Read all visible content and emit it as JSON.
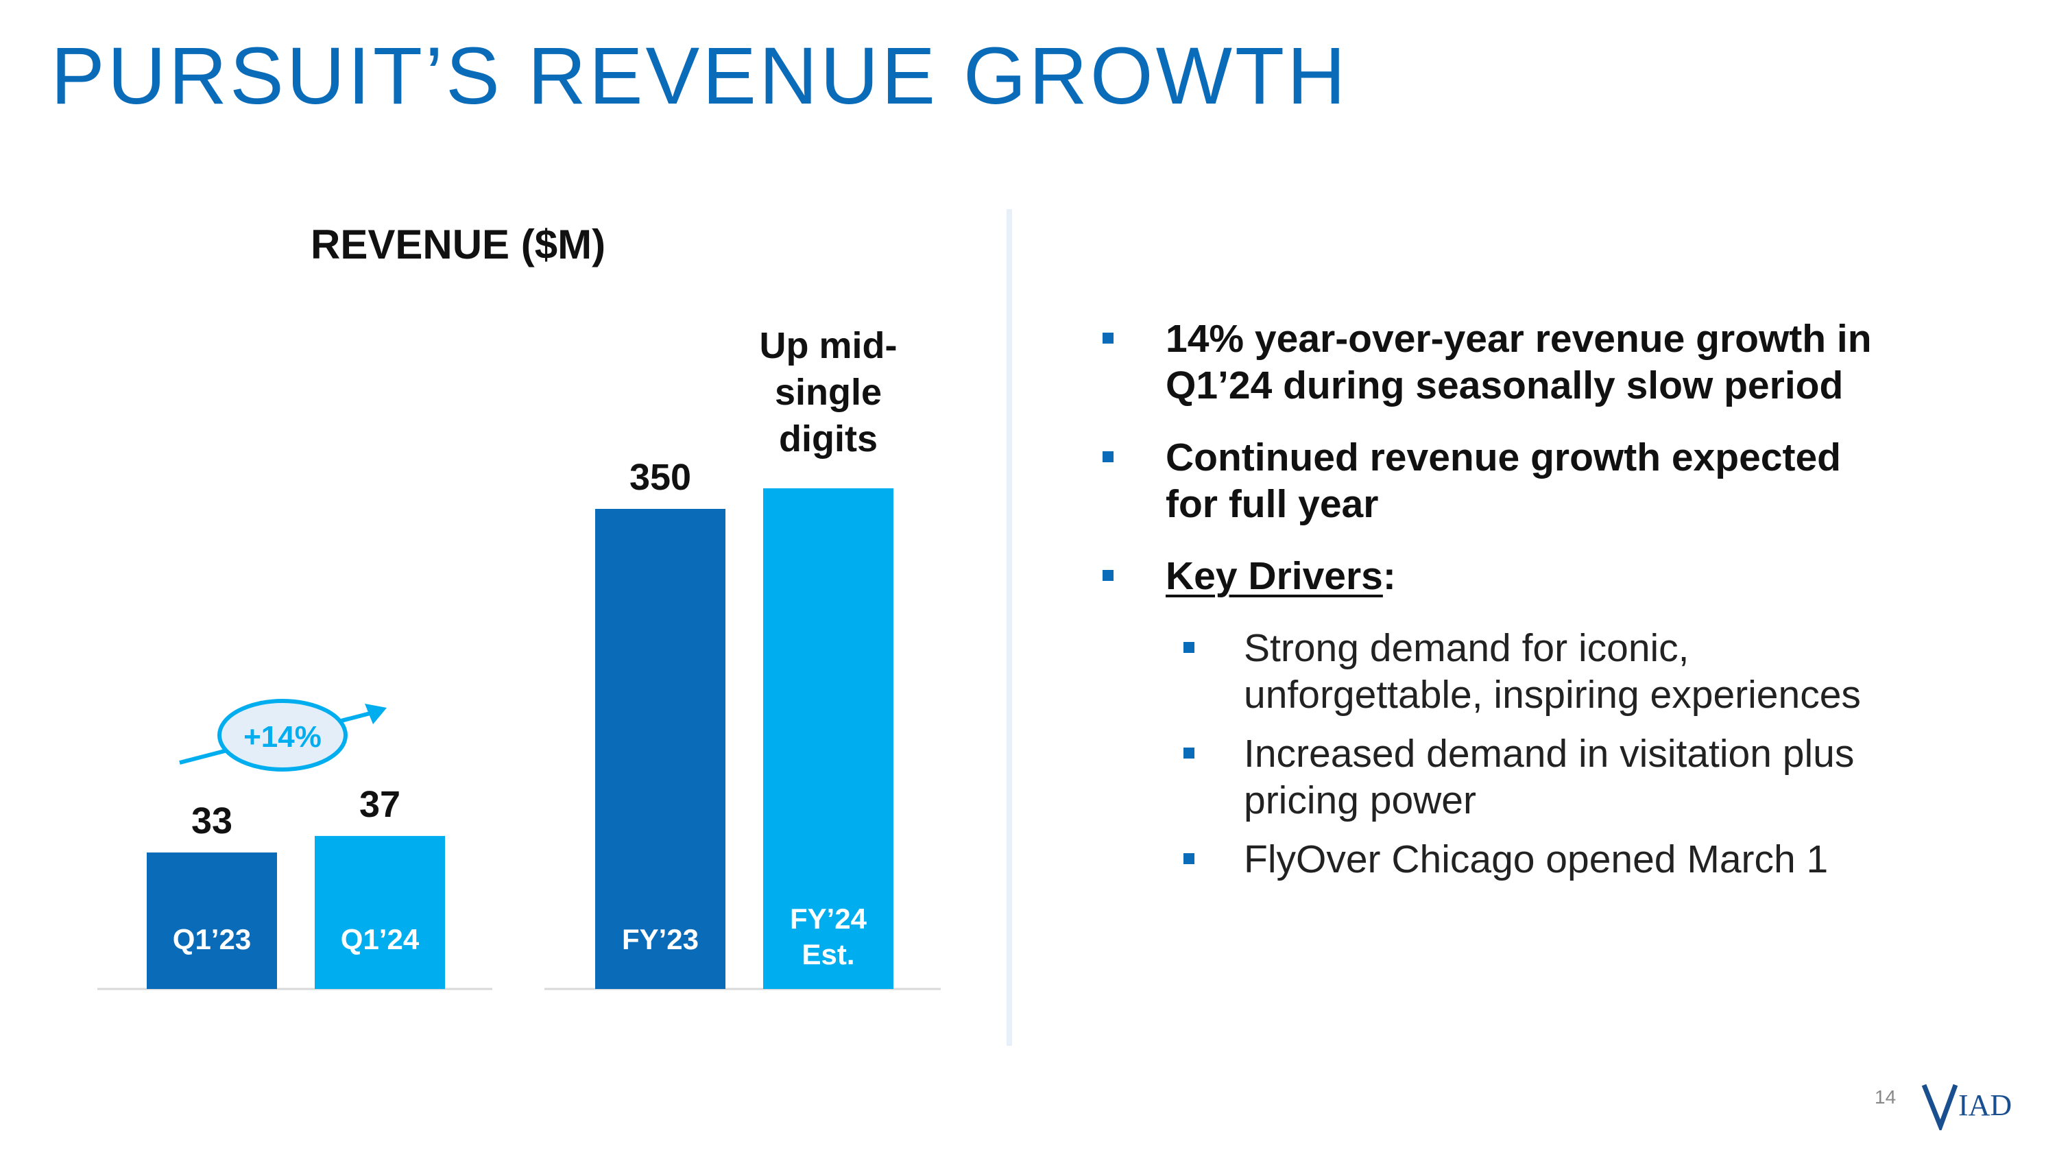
{
  "slide": {
    "title": "PURSUIT’S REVENUE GROWTH",
    "page_number": "14",
    "logo_text": "VIAD"
  },
  "colors": {
    "title_blue": "#0a6bb8",
    "dark_bar": "#0a6bb8",
    "light_bar": "#00adef",
    "divider": "#e7eff8"
  },
  "chart_data": [
    {
      "type": "bar",
      "title": "REVENUE ($M)",
      "categories": [
        "Q1’23",
        "Q1’24"
      ],
      "values": [
        33,
        37
      ],
      "value_labels": [
        "33",
        "37"
      ],
      "ylim": [
        0,
        370
      ],
      "annotation": "+14%"
    },
    {
      "type": "bar",
      "categories": [
        "FY’23",
        "FY’24 Est."
      ],
      "category_lines": [
        [
          "FY’23"
        ],
        [
          "FY’24",
          "Est."
        ]
      ],
      "values": [
        350,
        365
      ],
      "value_labels": [
        "350",
        ""
      ],
      "ylim": [
        0,
        370
      ],
      "annotation_lines": [
        "Up mid-",
        "single",
        "digits"
      ]
    }
  ],
  "bullets": [
    {
      "level": 1,
      "lines": [
        "14% year-over-year revenue growth in",
        "Q1’24 during seasonally slow period"
      ]
    },
    {
      "level": 1,
      "lines": [
        "Continued revenue growth expected",
        "for full year"
      ]
    },
    {
      "level": 1,
      "underlined": "Key Drivers",
      "suffix": ":"
    },
    {
      "level": 2,
      "lines": [
        "Strong demand for iconic,",
        "unforgettable, inspiring experiences"
      ]
    },
    {
      "level": 2,
      "lines": [
        "Increased demand in visitation plus",
        "pricing power"
      ]
    },
    {
      "level": 2,
      "lines": [
        "FlyOver Chicago opened March 1"
      ]
    }
  ]
}
